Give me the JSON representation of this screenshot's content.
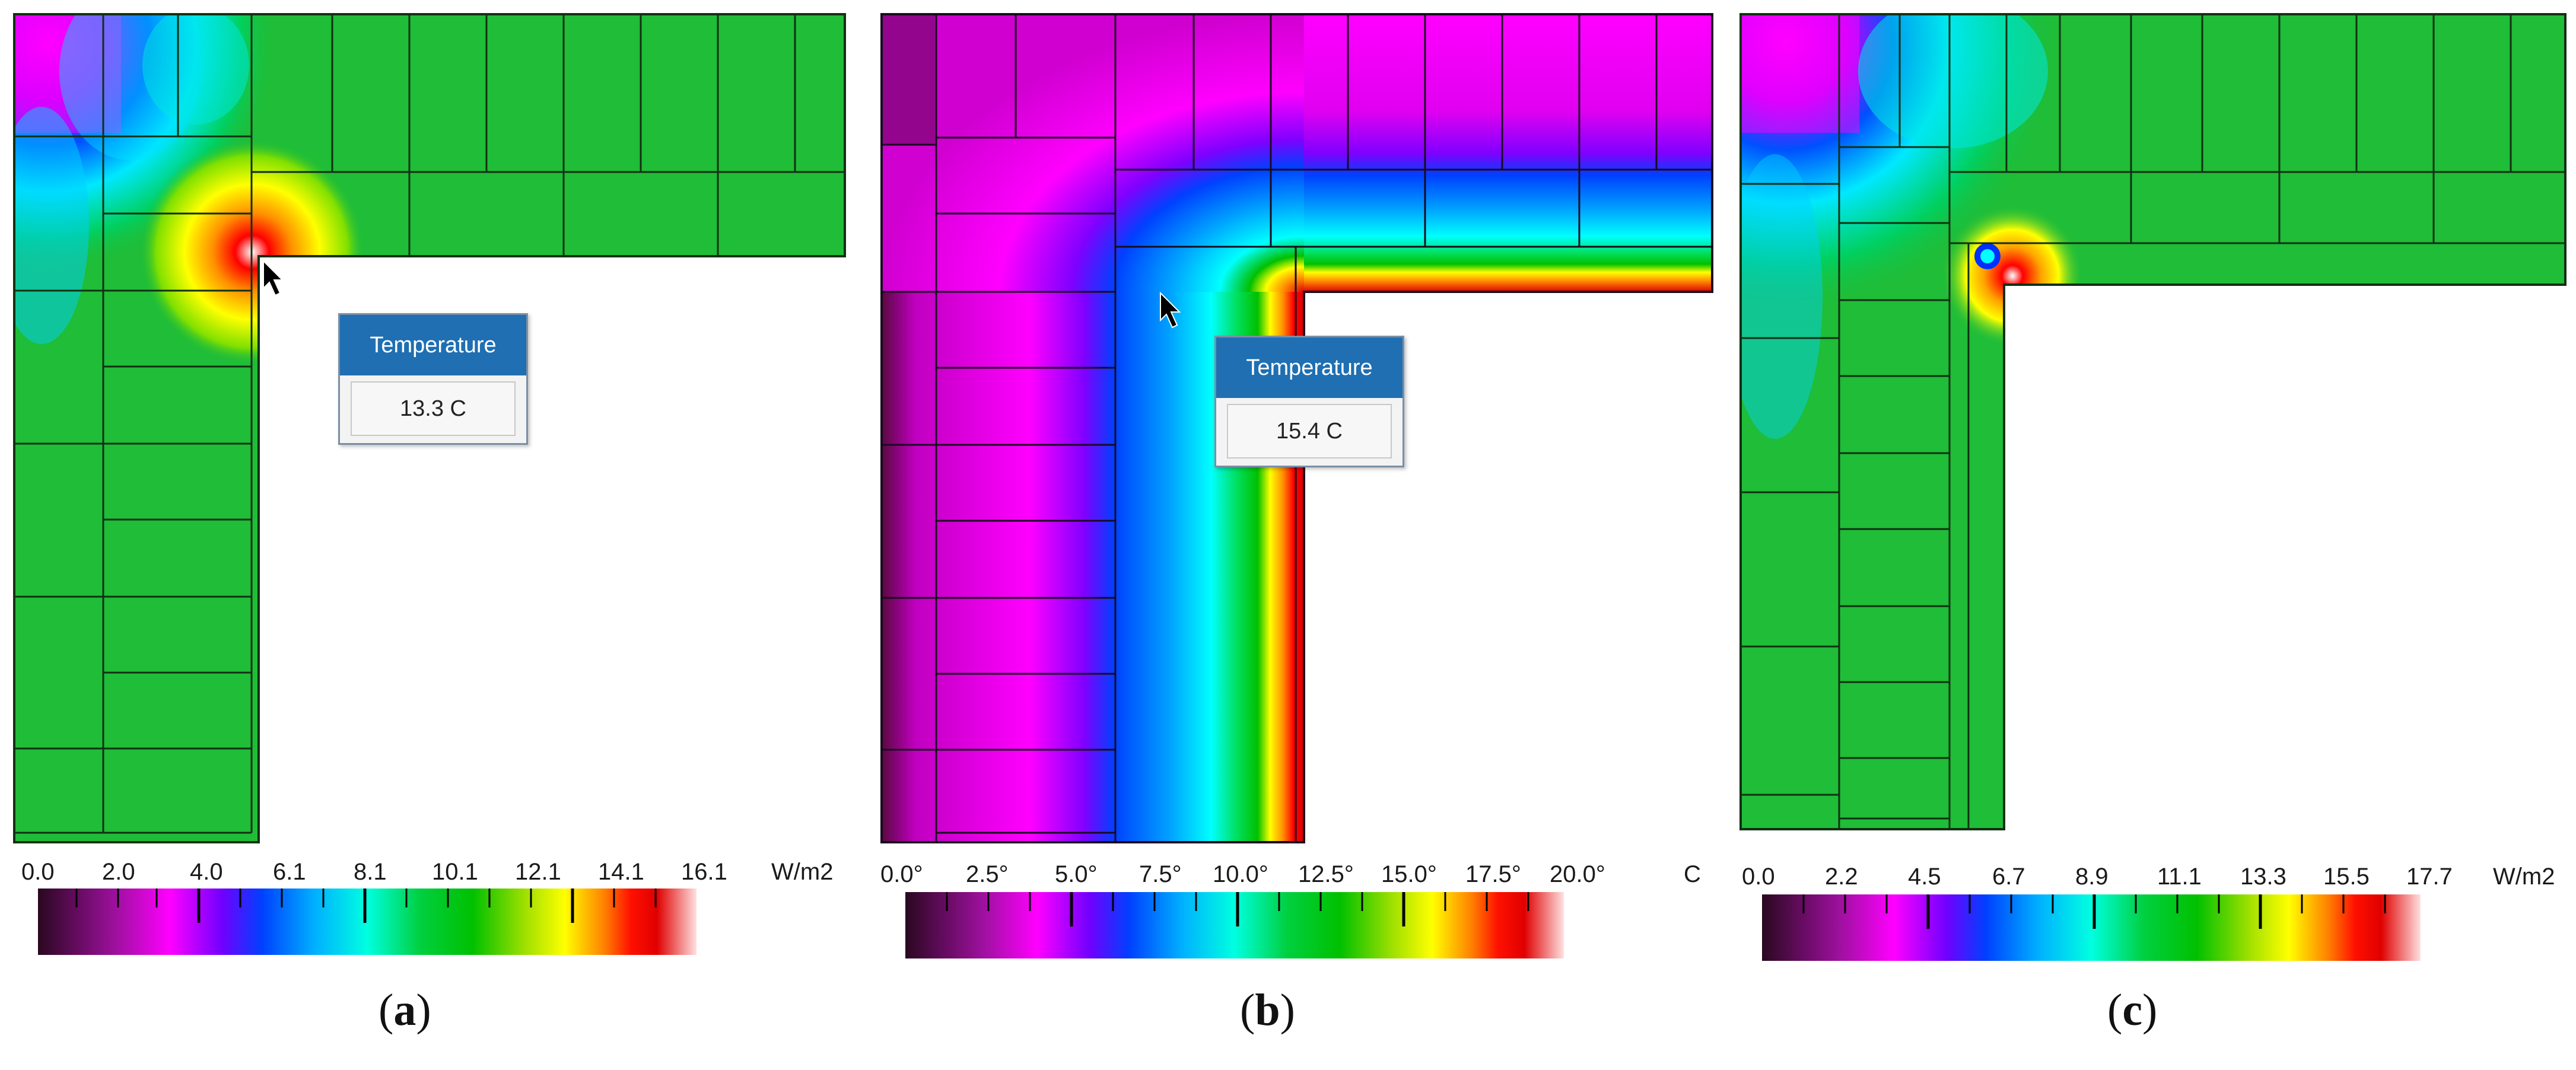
{
  "panels": [
    {
      "id": "a",
      "caption_open": "(",
      "caption_letter": "a",
      "caption_close": ")",
      "tooltip": {
        "header": "Temperature",
        "value": "13.3 C"
      },
      "legend": {
        "ticks": [
          "0.0",
          "2.0",
          "4.0",
          "6.1",
          "8.1",
          "10.1",
          "12.1",
          "14.1",
          "16.1"
        ],
        "unit": "W/m2"
      }
    },
    {
      "id": "b",
      "caption_open": "(",
      "caption_letter": "b",
      "caption_close": ")",
      "tooltip": {
        "header": "Temperature",
        "value": "15.4 C"
      },
      "legend": {
        "ticks": [
          "0.0°",
          "2.5°",
          "5.0°",
          "7.5°",
          "10.0°",
          "12.5°",
          "15.0°",
          "17.5°",
          "20.0°"
        ],
        "unit": "C"
      }
    },
    {
      "id": "c",
      "caption_open": "(",
      "caption_letter": "c",
      "caption_close": ")",
      "legend": {
        "ticks": [
          "0.0",
          "2.2",
          "4.5",
          "6.7",
          "8.9",
          "11.1",
          "13.3",
          "15.5",
          "17.7"
        ],
        "unit": "W/m2"
      }
    }
  ],
  "colors": {
    "scale": [
      "#2a0820",
      "#7a0a78",
      "#ff00ff",
      "#8000ff",
      "#0040ff",
      "#00b0ff",
      "#00ffff",
      "#00e060",
      "#00c000",
      "#80e000",
      "#ffff00",
      "#ffa000",
      "#ff2000",
      "#e00000",
      "#ffa0a0",
      "#ffffff"
    ],
    "wall_green": "#1fbd38",
    "tooltip_header": "#1f6fb2",
    "legend_background": "#eeeeee"
  }
}
